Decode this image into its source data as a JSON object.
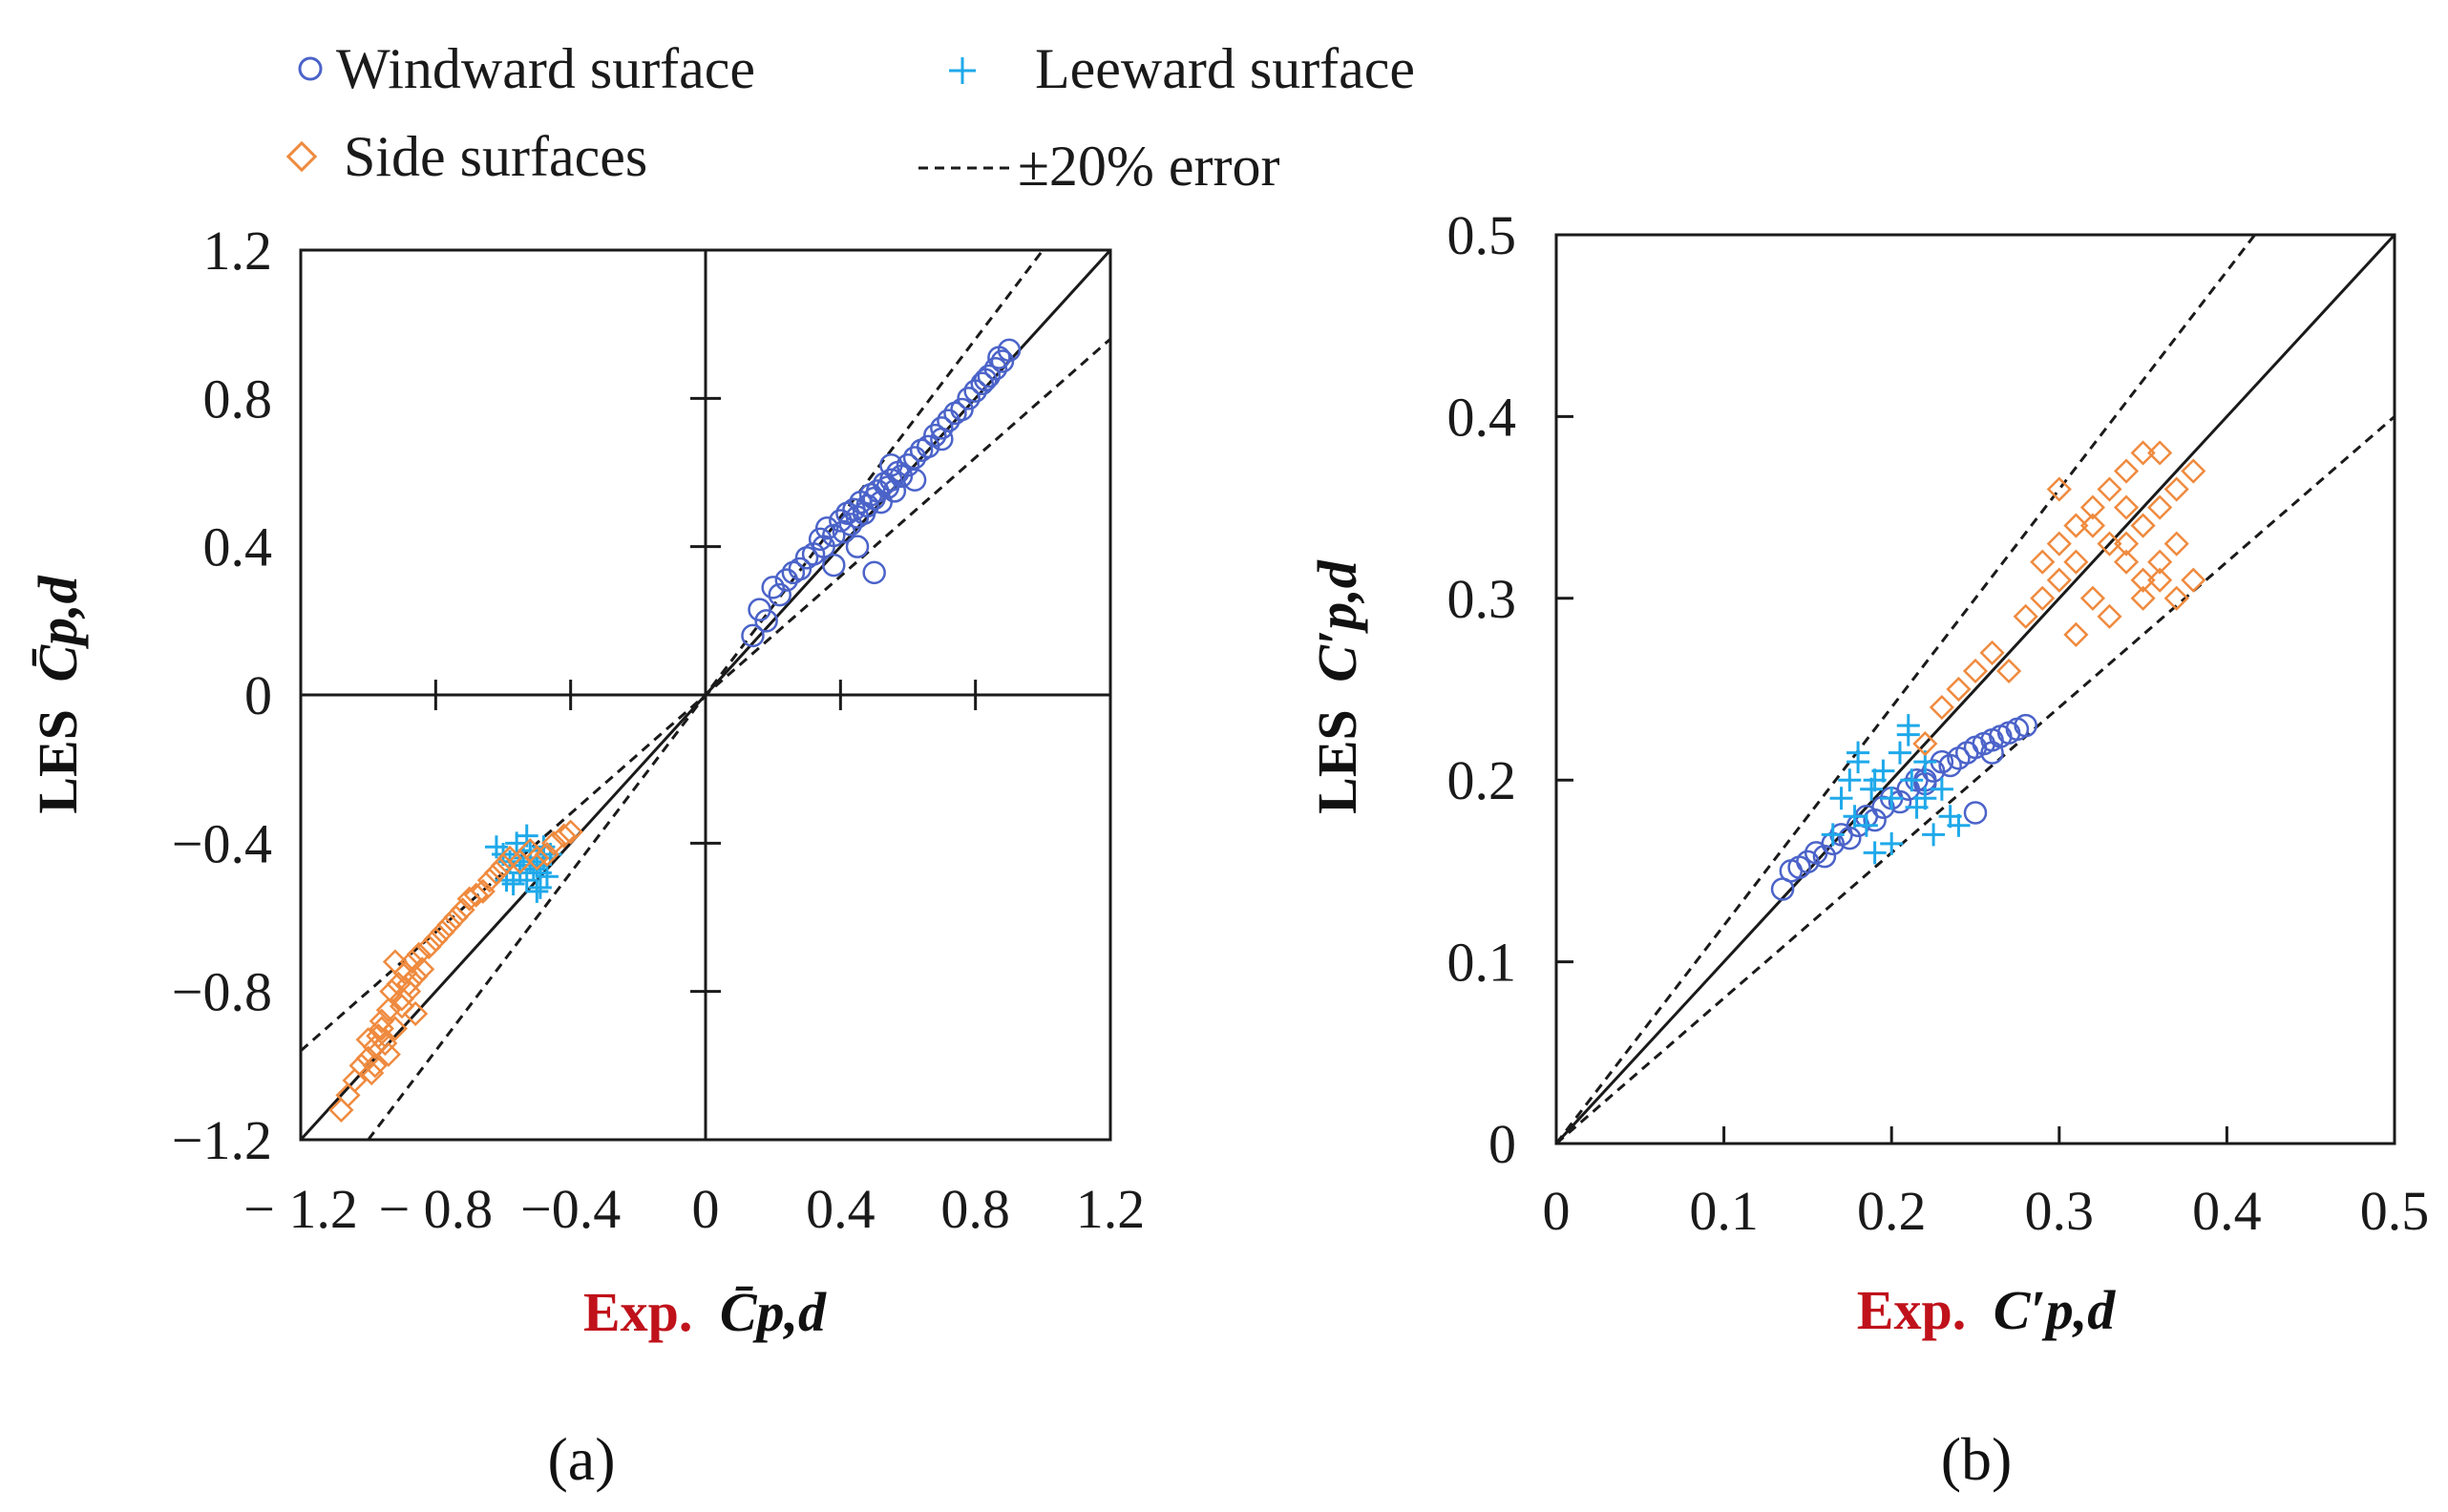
{
  "colors": {
    "windward": "#4b63c9",
    "leeward": "#1fa9ea",
    "side": "#ef8a3e",
    "axis": "#1a1a1a",
    "exp_label": "#c0121b"
  },
  "legend": {
    "windward": "Windward surface",
    "leeward": "Leeward surface",
    "side": "Side surfaces",
    "error_band": "±20% error",
    "windward_icon": "circle-marker-icon",
    "leeward_icon": "plus-marker-icon",
    "side_icon": "diamond-marker-icon",
    "error_icon": "dashed-line-icon"
  },
  "chart_data": [
    {
      "panel": "(a)",
      "type": "scatter",
      "xlabel_prefix": "Exp.",
      "xlabel_symbol": "C̄p,d",
      "ylabel_prefix": "LES",
      "ylabel_symbol": "C̄p,d",
      "xlim": [
        -1.2,
        1.2
      ],
      "ylim": [
        -1.2,
        1.2
      ],
      "xticks": [
        "− 1.2",
        "− 0.8",
        "−0.4",
        "0",
        "0.4",
        "0.8",
        "1.2"
      ],
      "yticks": [
        "−1.2",
        "−0.8",
        "−0.4",
        "0",
        "0.4",
        "0.8",
        "1.2"
      ],
      "reference_lines": [
        "y = x",
        "y = 1.2x",
        "y = 0.8x"
      ],
      "series": [
        {
          "name": "Windward surface",
          "marker": "circle",
          "x": [
            0.14,
            0.16,
            0.18,
            0.2,
            0.22,
            0.24,
            0.26,
            0.28,
            0.3,
            0.32,
            0.34,
            0.35,
            0.36,
            0.38,
            0.4,
            0.41,
            0.42,
            0.43,
            0.44,
            0.45,
            0.46,
            0.47,
            0.48,
            0.49,
            0.5,
            0.51,
            0.52,
            0.53,
            0.54,
            0.55,
            0.56,
            0.57,
            0.58,
            0.6,
            0.62,
            0.64,
            0.66,
            0.68,
            0.7,
            0.72,
            0.74,
            0.76,
            0.78,
            0.8,
            0.82,
            0.84,
            0.86,
            0.88,
            0.9,
            0.5,
            0.55,
            0.38,
            0.45,
            0.62,
            0.7,
            0.83,
            0.87
          ],
          "y": [
            0.16,
            0.23,
            0.2,
            0.29,
            0.27,
            0.31,
            0.33,
            0.34,
            0.37,
            0.38,
            0.42,
            0.4,
            0.45,
            0.43,
            0.47,
            0.44,
            0.49,
            0.46,
            0.5,
            0.48,
            0.52,
            0.49,
            0.51,
            0.54,
            0.53,
            0.55,
            0.52,
            0.57,
            0.56,
            0.58,
            0.55,
            0.6,
            0.59,
            0.62,
            0.64,
            0.66,
            0.67,
            0.7,
            0.72,
            0.74,
            0.76,
            0.77,
            0.8,
            0.82,
            0.84,
            0.86,
            0.88,
            0.9,
            0.93,
            0.33,
            0.62,
            0.35,
            0.4,
            0.58,
            0.69,
            0.85,
            0.91
          ]
        },
        {
          "name": "Leeward surface",
          "marker": "plus",
          "x": [
            -0.62,
            -0.6,
            -0.58,
            -0.56,
            -0.55,
            -0.54,
            -0.53,
            -0.52,
            -0.51,
            -0.5,
            -0.49,
            -0.48,
            -0.47,
            -0.46,
            -0.57,
            -0.53,
            -0.5,
            -0.48,
            -0.55,
            -0.59,
            -0.52,
            -0.49
          ],
          "y": [
            -0.41,
            -0.43,
            -0.45,
            -0.4,
            -0.48,
            -0.44,
            -0.5,
            -0.42,
            -0.47,
            -0.46,
            -0.52,
            -0.44,
            -0.49,
            -0.43,
            -0.51,
            -0.38,
            -0.53,
            -0.41,
            -0.46,
            -0.5,
            -0.45,
            -0.48
          ]
        },
        {
          "name": "Side surfaces",
          "marker": "diamond",
          "x": [
            -1.08,
            -1.06,
            -1.04,
            -1.02,
            -1.0,
            -0.99,
            -0.98,
            -0.97,
            -0.96,
            -0.95,
            -0.94,
            -0.93,
            -0.92,
            -0.91,
            -0.9,
            -0.89,
            -0.88,
            -0.87,
            -0.86,
            -0.85,
            -0.84,
            -0.82,
            -0.8,
            -0.78,
            -0.76,
            -0.74,
            -0.72,
            -0.7,
            -0.68,
            -0.66,
            -0.64,
            -0.62,
            -0.6,
            -0.58,
            -0.55,
            -0.52,
            -0.5,
            -0.47,
            -0.45,
            -0.42,
            -0.4,
            -0.94,
            -0.9,
            -0.86,
            -0.96,
            -0.88,
            -0.92,
            -0.98,
            -1.0
          ],
          "y": [
            -1.12,
            -1.08,
            -1.04,
            -1.0,
            -0.98,
            -1.02,
            -0.95,
            -0.92,
            -0.88,
            -0.94,
            -0.85,
            -0.8,
            -0.9,
            -0.78,
            -0.84,
            -0.75,
            -0.8,
            -0.72,
            -0.76,
            -0.7,
            -0.74,
            -0.68,
            -0.66,
            -0.64,
            -0.62,
            -0.6,
            -0.58,
            -0.55,
            -0.54,
            -0.53,
            -0.5,
            -0.48,
            -0.46,
            -0.44,
            -0.45,
            -0.42,
            -0.44,
            -0.43,
            -0.4,
            -0.38,
            -0.37,
            -0.97,
            -0.82,
            -0.86,
            -0.9,
            -0.78,
            -0.72,
            -1.0,
            -0.93
          ]
        }
      ]
    },
    {
      "panel": "(b)",
      "type": "scatter",
      "xlabel_prefix": "Exp.",
      "xlabel_symbol": "C′p,d",
      "ylabel_prefix": "LES",
      "ylabel_symbol": "C′p,d",
      "xlim": [
        0,
        0.5
      ],
      "ylim": [
        0,
        0.5
      ],
      "xticks": [
        "0",
        "0.1",
        "0.2",
        "0.3",
        "0.4",
        "0.5"
      ],
      "yticks": [
        "0",
        "0.1",
        "0.2",
        "0.3",
        "0.4",
        "0.5"
      ],
      "reference_lines": [
        "y = x",
        "y = 1.2x",
        "y = 0.8x"
      ],
      "series": [
        {
          "name": "Windward surface",
          "marker": "circle",
          "x": [
            0.135,
            0.14,
            0.145,
            0.15,
            0.155,
            0.16,
            0.165,
            0.17,
            0.175,
            0.18,
            0.185,
            0.19,
            0.195,
            0.2,
            0.205,
            0.21,
            0.215,
            0.22,
            0.225,
            0.23,
            0.235,
            0.24,
            0.245,
            0.25,
            0.255,
            0.26,
            0.265,
            0.27,
            0.275,
            0.28,
            0.25,
            0.22,
            0.26
          ],
          "y": [
            0.14,
            0.15,
            0.152,
            0.155,
            0.16,
            0.158,
            0.165,
            0.17,
            0.168,
            0.175,
            0.18,
            0.178,
            0.185,
            0.19,
            0.188,
            0.195,
            0.2,
            0.198,
            0.205,
            0.21,
            0.208,
            0.212,
            0.215,
            0.218,
            0.22,
            0.222,
            0.224,
            0.226,
            0.228,
            0.23,
            0.182,
            0.2,
            0.215
          ]
        },
        {
          "name": "Leeward surface",
          "marker": "plus",
          "x": [
            0.165,
            0.17,
            0.175,
            0.178,
            0.18,
            0.185,
            0.188,
            0.19,
            0.195,
            0.2,
            0.205,
            0.21,
            0.212,
            0.215,
            0.22,
            0.225,
            0.23,
            0.235,
            0.24,
            0.21,
            0.2,
            0.19,
            0.22,
            0.18
          ],
          "y": [
            0.17,
            0.19,
            0.2,
            0.18,
            0.21,
            0.175,
            0.195,
            0.16,
            0.205,
            0.19,
            0.215,
            0.23,
            0.2,
            0.185,
            0.21,
            0.17,
            0.195,
            0.18,
            0.175,
            0.225,
            0.165,
            0.2,
            0.19,
            0.215
          ]
        },
        {
          "name": "Side surfaces",
          "marker": "diamond",
          "x": [
            0.22,
            0.23,
            0.24,
            0.25,
            0.26,
            0.27,
            0.28,
            0.29,
            0.3,
            0.3,
            0.31,
            0.31,
            0.32,
            0.32,
            0.33,
            0.33,
            0.34,
            0.34,
            0.35,
            0.35,
            0.35,
            0.36,
            0.36,
            0.37,
            0.37,
            0.38,
            0.38,
            0.29,
            0.3,
            0.33,
            0.34,
            0.36,
            0.32,
            0.35,
            0.37,
            0.31,
            0.34,
            0.36
          ],
          "y": [
            0.22,
            0.24,
            0.25,
            0.26,
            0.27,
            0.26,
            0.29,
            0.3,
            0.36,
            0.31,
            0.34,
            0.28,
            0.35,
            0.3,
            0.33,
            0.36,
            0.32,
            0.37,
            0.38,
            0.3,
            0.34,
            0.35,
            0.31,
            0.33,
            0.36,
            0.37,
            0.31,
            0.32,
            0.33,
            0.29,
            0.35,
            0.32,
            0.34,
            0.31,
            0.3,
            0.32,
            0.33,
            0.38
          ]
        }
      ]
    }
  ]
}
